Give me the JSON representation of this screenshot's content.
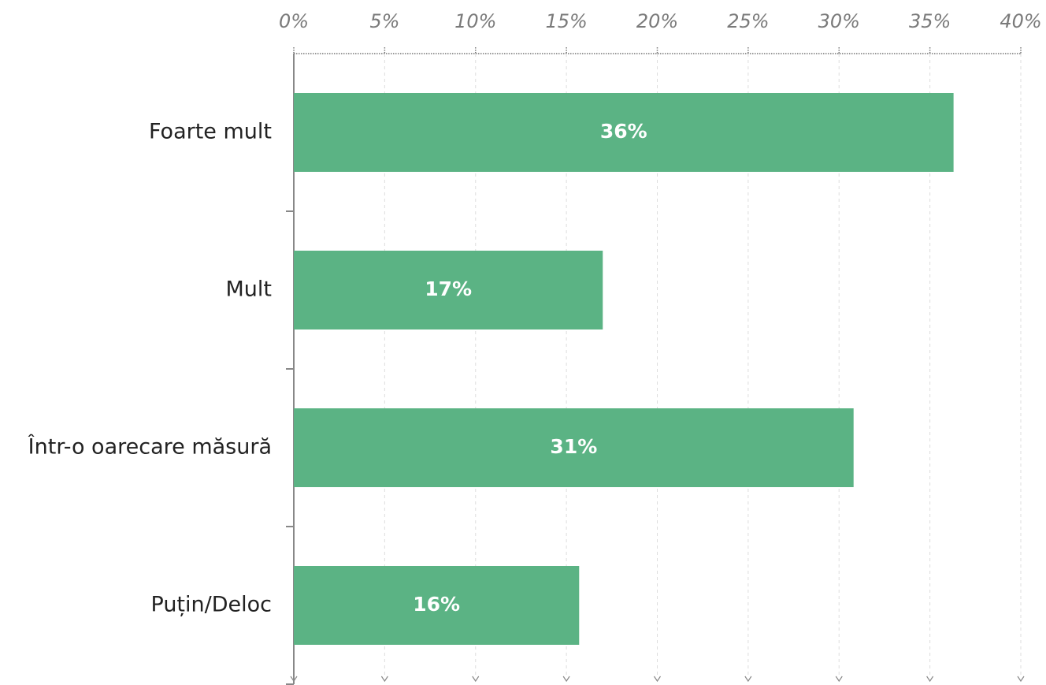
{
  "chart_data": {
    "type": "bar",
    "orientation": "horizontal",
    "categories": [
      "Foarte mult",
      "Mult",
      "Într-o oarecare măsură",
      "Puțin/Deloc"
    ],
    "values": [
      36.3,
      17,
      30.8,
      15.7
    ],
    "value_labels": [
      "36%",
      "17%",
      "31%",
      "16%"
    ],
    "color": "#5bb384",
    "xlim": [
      0,
      40
    ],
    "xticks": [
      {
        "value": 0,
        "label": "0%"
      },
      {
        "value": 5,
        "label": "5%"
      },
      {
        "value": 10,
        "label": "10%"
      },
      {
        "value": 15,
        "label": "15%"
      },
      {
        "value": 20,
        "label": "20%"
      },
      {
        "value": 25,
        "label": "25%"
      },
      {
        "value": 30,
        "label": "30%"
      },
      {
        "value": 35,
        "label": "35%"
      },
      {
        "value": 40,
        "label": "40%"
      }
    ],
    "grid": true
  }
}
